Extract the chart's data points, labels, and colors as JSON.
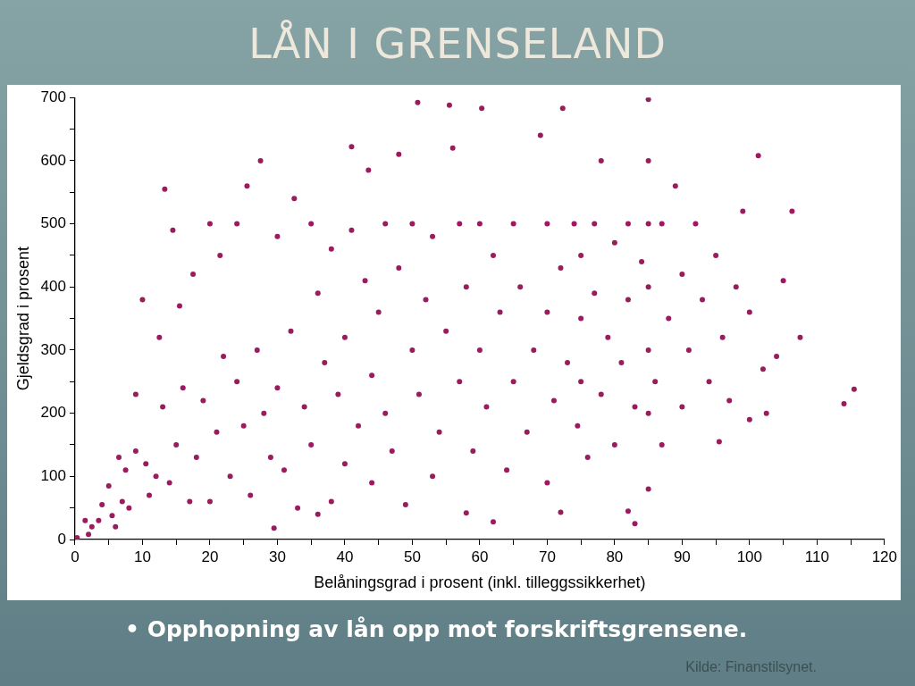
{
  "chart_data": {
    "type": "scatter",
    "title": "LÅN I GRENSELAND",
    "xlabel": "Belåningsgrad i prosent (inkl. tilleggssikkerhet)",
    "ylabel": "Gjeldsgrad i prosent",
    "annotations": [
      "• Opphopning av lån opp mot forskriftsgrensene.",
      "Kilde: Finanstilsynet."
    ],
    "xlim": [
      0,
      120
    ],
    "xticks": [
      0,
      {
        "value": 5,
        "label": null
      },
      10,
      {
        "value": 15,
        "label": null
      },
      20,
      {
        "value": 25,
        "label": null
      },
      30,
      {
        "value": 35,
        "label": null
      },
      40,
      {
        "value": 45,
        "label": null
      },
      50,
      {
        "value": 55,
        "label": null
      },
      60,
      {
        "value": 65,
        "label": null
      },
      70,
      {
        "value": 75,
        "label": null
      },
      80,
      {
        "value": 85,
        "label": null
      },
      90,
      {
        "value": 95,
        "label": null
      },
      100,
      {
        "value": 105,
        "label": null
      },
      110,
      {
        "value": 115,
        "label": null
      },
      120
    ],
    "ylim": [
      0,
      700
    ],
    "yticks": [
      0,
      {
        "value": 50,
        "label": null
      },
      100,
      {
        "value": 150,
        "label": null
      },
      200,
      {
        "value": 250,
        "label": null
      },
      300,
      {
        "value": 350,
        "label": null
      },
      400,
      {
        "value": 450,
        "label": null
      },
      500,
      {
        "value": 550,
        "label": null
      },
      600,
      {
        "value": 650,
        "label": null
      },
      700
    ],
    "grid": false,
    "legend": false,
    "marker": "circle",
    "series": [
      {
        "color": "#9b1c5e",
        "x": [
          0.3,
          1.5,
          2,
          2.5,
          3.5,
          4,
          5,
          5.5,
          6,
          6.5,
          7,
          7.5,
          8,
          9,
          9,
          10,
          10.5,
          11,
          12,
          12.5,
          13,
          13.3,
          14,
          14.5,
          15,
          15.5,
          16,
          17,
          17.5,
          18,
          19,
          20,
          20,
          21,
          21.5,
          22,
          23,
          24,
          24,
          25,
          25.5,
          26,
          27,
          27.5,
          28,
          29,
          29.5,
          30,
          30,
          31,
          32,
          32.5,
          33,
          34,
          35,
          35,
          36,
          36,
          37,
          38,
          38,
          39,
          40,
          40,
          41,
          41,
          42,
          43,
          43.5,
          44,
          44,
          45,
          46,
          46,
          47,
          48,
          48,
          49,
          50,
          50,
          50.8,
          51,
          52,
          53,
          53,
          54,
          55,
          55.5,
          56,
          57,
          57,
          58,
          58,
          59,
          60,
          60,
          60.3,
          61,
          62,
          62,
          63,
          64,
          65,
          65,
          66,
          67,
          68,
          69,
          70,
          70,
          70,
          71,
          72,
          72,
          72.3,
          73,
          74,
          74.5,
          75,
          75,
          75,
          76,
          77,
          77,
          78,
          78,
          79,
          80,
          80,
          81,
          82,
          82,
          82,
          83,
          83,
          84,
          85,
          85,
          85,
          85,
          85,
          85,
          85,
          86,
          87,
          87,
          88,
          89,
          90,
          90,
          91,
          92,
          93,
          94,
          95,
          95.5,
          96,
          97,
          98,
          99,
          100,
          100,
          101.3,
          102,
          102.5,
          104,
          105,
          106.3,
          107.5,
          114,
          115.5
        ],
        "values": [
          3,
          30,
          8,
          20,
          30,
          55,
          85,
          38,
          20,
          130,
          60,
          110,
          50,
          140,
          230,
          380,
          120,
          70,
          100,
          320,
          210,
          555,
          90,
          490,
          150,
          370,
          240,
          60,
          420,
          130,
          220,
          60,
          500,
          170,
          450,
          290,
          100,
          250,
          500,
          180,
          560,
          70,
          300,
          600,
          200,
          130,
          18,
          480,
          240,
          110,
          330,
          540,
          50,
          210,
          500,
          150,
          40,
          390,
          280,
          60,
          460,
          230,
          320,
          120,
          622,
          490,
          180,
          410,
          585,
          90,
          260,
          360,
          500,
          200,
          140,
          430,
          610,
          55,
          300,
          500,
          692,
          230,
          380,
          100,
          480,
          170,
          330,
          688,
          620,
          250,
          500,
          42,
          400,
          140,
          300,
          500,
          683,
          210,
          28,
          450,
          360,
          110,
          500,
          250,
          400,
          170,
          300,
          640,
          500,
          90,
          360,
          220,
          43,
          430,
          683,
          280,
          500,
          180,
          350,
          250,
          450,
          130,
          500,
          390,
          230,
          600,
          320,
          470,
          150,
          280,
          45,
          500,
          380,
          25,
          210,
          440,
          80,
          200,
          300,
          400,
          500,
          600,
          697,
          250,
          500,
          150,
          350,
          560,
          420,
          210,
          300,
          500,
          380,
          250,
          450,
          155,
          320,
          220,
          400,
          520,
          190,
          360,
          608,
          270,
          200,
          290,
          410,
          520,
          320,
          215,
          238
        ]
      }
    ]
  }
}
